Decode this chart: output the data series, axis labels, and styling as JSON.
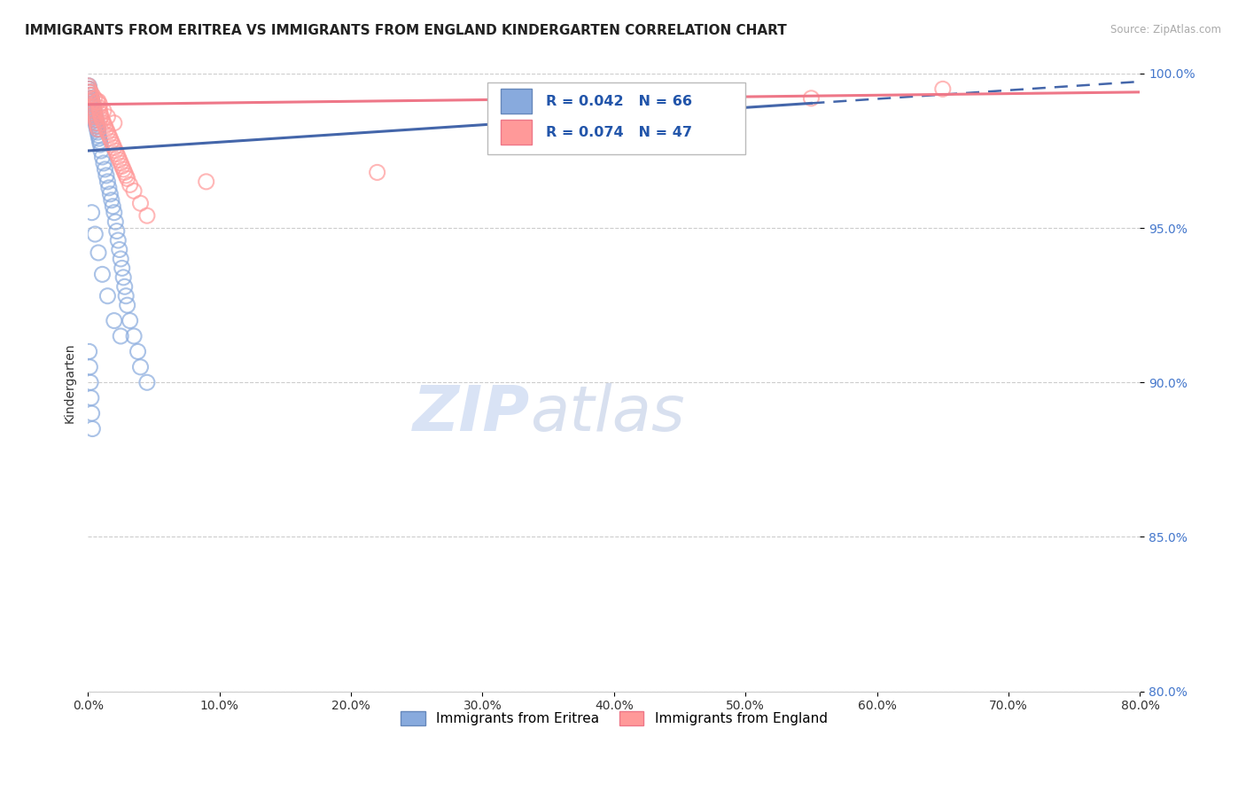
{
  "title": "IMMIGRANTS FROM ERITREA VS IMMIGRANTS FROM ENGLAND KINDERGARTEN CORRELATION CHART",
  "source_text": "Source: ZipAtlas.com",
  "ylabel": "Kindergarten",
  "xlim": [
    0.0,
    80.0
  ],
  "ylim": [
    80.0,
    100.0
  ],
  "x_ticks": [
    0.0,
    10.0,
    20.0,
    30.0,
    40.0,
    50.0,
    60.0,
    70.0,
    80.0
  ],
  "y_ticks": [
    80.0,
    85.0,
    90.0,
    95.0,
    100.0
  ],
  "x_tick_labels": [
    "0.0%",
    "10.0%",
    "20.0%",
    "30.0%",
    "40.0%",
    "50.0%",
    "60.0%",
    "70.0%",
    "80.0%"
  ],
  "y_tick_labels": [
    "80.0%",
    "85.0%",
    "90.0%",
    "95.0%",
    "100.0%"
  ],
  "legend_labels": [
    "Immigrants from Eritrea",
    "Immigrants from England"
  ],
  "legend_R_N": [
    {
      "R": "0.042",
      "N": "66"
    },
    {
      "R": "0.074",
      "N": "47"
    }
  ],
  "blue_color": "#88AADD",
  "pink_color": "#FF9999",
  "blue_edge_color": "#6688BB",
  "pink_edge_color": "#EE7788",
  "blue_line_color": "#4466AA",
  "pink_line_color": "#EE7788",
  "watermark_zip": "ZIP",
  "watermark_atlas": "atlas",
  "background_color": "#FFFFFF",
  "grid_color": "#CCCCCC",
  "title_fontsize": 11,
  "axis_label_fontsize": 10,
  "tick_fontsize": 10,
  "legend_fontsize": 11,
  "blue_scatter_x": [
    0.05,
    0.08,
    0.1,
    0.12,
    0.15,
    0.18,
    0.2,
    0.22,
    0.25,
    0.28,
    0.3,
    0.32,
    0.35,
    0.38,
    0.4,
    0.42,
    0.45,
    0.48,
    0.5,
    0.52,
    0.55,
    0.58,
    0.6,
    0.62,
    0.65,
    0.68,
    0.7,
    0.72,
    0.75,
    0.78,
    0.8,
    0.85,
    0.9,
    0.95,
    1.0,
    1.1,
    1.2,
    1.3,
    1.4,
    1.5,
    1.6,
    1.7,
    1.8,
    1.9,
    2.0,
    2.1,
    2.2,
    2.3,
    2.4,
    2.5,
    2.6,
    2.7,
    2.8,
    2.9,
    3.0,
    3.2,
    3.5,
    3.8,
    4.0,
    4.5,
    0.1,
    0.15,
    0.2,
    0.25,
    0.3,
    0.35
  ],
  "blue_scatter_y": [
    99.5,
    99.6,
    99.4,
    99.5,
    99.3,
    99.4,
    99.2,
    99.3,
    99.1,
    99.2,
    99.0,
    99.1,
    98.9,
    99.0,
    98.8,
    98.9,
    98.7,
    98.8,
    98.6,
    98.7,
    98.5,
    98.6,
    98.4,
    98.5,
    98.3,
    98.4,
    98.2,
    98.3,
    98.1,
    98.2,
    98.0,
    97.9,
    97.8,
    97.7,
    97.5,
    97.3,
    97.1,
    96.9,
    96.7,
    96.5,
    96.3,
    96.1,
    95.9,
    95.7,
    95.5,
    95.2,
    94.9,
    94.6,
    94.3,
    94.0,
    93.7,
    93.4,
    93.1,
    92.8,
    92.5,
    92.0,
    91.5,
    91.0,
    90.5,
    90.0,
    91.0,
    90.5,
    90.0,
    89.5,
    89.0,
    88.5
  ],
  "blue_scatter_x2": [
    0.3,
    0.55,
    0.8,
    1.1,
    1.5,
    2.0,
    2.5
  ],
  "blue_scatter_y2": [
    95.5,
    94.8,
    94.2,
    93.5,
    92.8,
    92.0,
    91.5
  ],
  "pink_scatter_x": [
    0.05,
    0.1,
    0.15,
    0.2,
    0.25,
    0.3,
    0.35,
    0.4,
    0.45,
    0.5,
    0.55,
    0.6,
    0.65,
    0.7,
    0.75,
    0.8,
    0.85,
    0.9,
    0.95,
    1.0,
    1.1,
    1.2,
    1.3,
    1.4,
    1.5,
    1.6,
    1.7,
    1.8,
    1.9,
    2.0,
    2.1,
    2.2,
    2.3,
    2.4,
    2.5,
    2.6,
    2.7,
    2.8,
    2.9,
    3.0,
    3.2,
    3.5,
    4.0,
    4.5,
    22.0,
    55.0,
    65.0
  ],
  "pink_scatter_y": [
    99.6,
    99.5,
    99.4,
    99.3,
    99.2,
    99.1,
    99.0,
    98.9,
    98.8,
    98.7,
    98.6,
    98.5,
    98.4,
    98.3,
    98.2,
    99.1,
    98.9,
    98.8,
    98.7,
    98.6,
    98.5,
    98.4,
    98.3,
    98.2,
    98.1,
    98.0,
    97.9,
    97.8,
    97.7,
    97.6,
    97.5,
    97.4,
    97.3,
    97.2,
    97.1,
    97.0,
    96.9,
    96.8,
    96.7,
    96.6,
    96.4,
    96.2,
    95.8,
    95.4,
    96.8,
    99.2,
    99.5
  ],
  "pink_scatter_x2": [
    0.2,
    0.35,
    0.5,
    0.7,
    0.9,
    1.2,
    1.5,
    2.0,
    9.0
  ],
  "pink_scatter_y2": [
    99.4,
    99.3,
    99.2,
    99.1,
    99.0,
    98.8,
    98.6,
    98.4,
    96.5
  ]
}
